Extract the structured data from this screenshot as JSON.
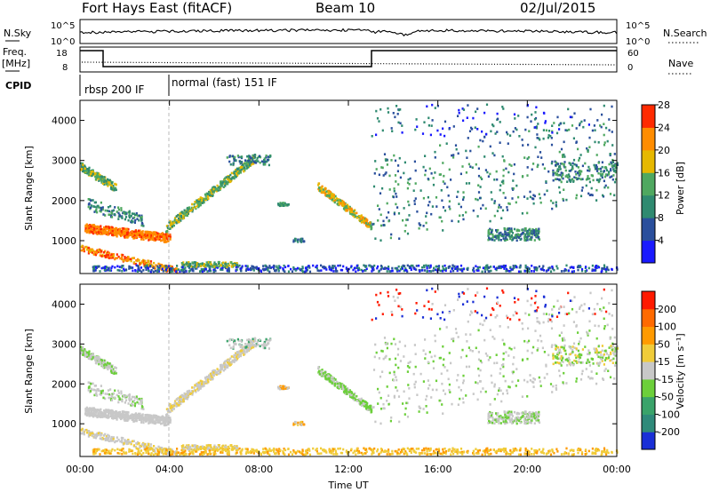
{
  "header": {
    "station": "Fort Hays East (fitACF)",
    "beam": "Beam 10",
    "date": "02/Jul/2015"
  },
  "summary_panel": {
    "nsky_label": "N.Sky",
    "nsky_ticks": [
      "10^5",
      "10^0"
    ],
    "nsearch_label": "N.Search",
    "nsearch_ticks": [
      "10^5",
      "10^0"
    ],
    "freq_label_1": "Freq.",
    "freq_label_2": "[MHz]",
    "freq_ticks": [
      "18",
      "8"
    ],
    "nave_label": "Nave",
    "nave_ticks": [
      "60",
      "0"
    ],
    "cpid_label": "CPID",
    "modes": [
      {
        "name": "rbsp 200 IF",
        "start_hour": 0
      },
      {
        "name": "normal (fast) 151 IF",
        "start_hour": 4
      }
    ]
  },
  "chart_data": [
    {
      "type": "heatmap",
      "parameter": "Power",
      "ylabel": "Slant Range [km]",
      "yticks": [
        1000,
        2000,
        3000,
        4000
      ],
      "ylim": [
        180,
        4500
      ],
      "xlim": [
        0,
        24
      ],
      "colorbar": {
        "label": "Power [dB]",
        "ticks": [
          "4",
          "8",
          "12",
          "16",
          "20",
          "24",
          "28"
        ],
        "colors": [
          "#1a1aff",
          "#2a4f9c",
          "#2f8a70",
          "#4fa860",
          "#e6b800",
          "#ff8c00",
          "#ff2a00"
        ]
      }
    },
    {
      "type": "heatmap",
      "parameter": "Velocity",
      "ylabel": "Slant Range [km]",
      "xlabel": "Time UT",
      "yticks": [
        1000,
        2000,
        3000,
        4000
      ],
      "ylim": [
        180,
        4500
      ],
      "xlim": [
        0,
        24
      ],
      "xticks": [
        "00:00",
        "04:00",
        "08:00",
        "12:00",
        "16:00",
        "20:00",
        "00:00"
      ],
      "colorbar": {
        "label": "Velocity [m s⁻¹]",
        "ticks": [
          "200",
          "100",
          "50",
          "15",
          "-15",
          "-50",
          "-100",
          "-200"
        ],
        "colors": [
          "#1a2fd6",
          "#2f8a7a",
          "#3aa36a",
          "#6ccf3a",
          "#c8c8c8",
          "#f0cc3a",
          "#ff9a00",
          "#ff6a00",
          "#ff1a00"
        ]
      }
    }
  ]
}
